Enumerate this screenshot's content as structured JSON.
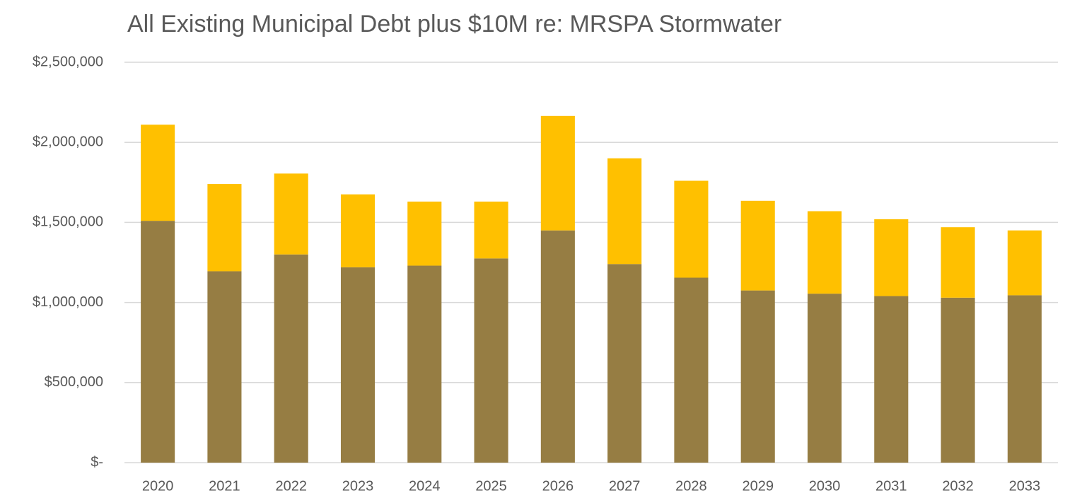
{
  "chart_data": {
    "type": "stacked_bar",
    "title": "All Existing Municipal Debt plus $10M re: MRSPA Stormwater",
    "categories": [
      "2020",
      "2021",
      "2022",
      "2023",
      "2024",
      "2025",
      "2026",
      "2027",
      "2028",
      "2029",
      "2030",
      "2031",
      "2032",
      "2033"
    ],
    "series": [
      {
        "color": "#967d43",
        "values": [
          1510000,
          1195000,
          1300000,
          1220000,
          1230000,
          1275000,
          1450000,
          1240000,
          1155000,
          1075000,
          1055000,
          1040000,
          1030000,
          1045000
        ]
      },
      {
        "color": "#ffc000",
        "values": [
          600000,
          545000,
          505000,
          455000,
          400000,
          355000,
          715000,
          660000,
          605000,
          560000,
          515000,
          480000,
          440000,
          405000
        ]
      }
    ],
    "ylim": [
      0,
      2500000
    ],
    "yticks": [
      {
        "value": 0,
        "label": "$-"
      },
      {
        "value": 500000,
        "label": "$500,000"
      },
      {
        "value": 1000000,
        "label": "$1,000,000"
      },
      {
        "value": 1500000,
        "label": "$1,500,000"
      },
      {
        "value": 2000000,
        "label": "$2,000,000"
      },
      {
        "value": 2500000,
        "label": "$2,500,000"
      }
    ],
    "grid": true
  }
}
